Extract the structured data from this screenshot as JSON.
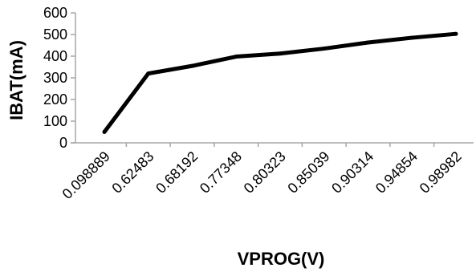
{
  "chart_data": {
    "type": "line",
    "title": "",
    "xlabel": "VPROG(V)",
    "ylabel": "IBAT(mA)",
    "categories": [
      "0.098889",
      "0.62483",
      "0.68192",
      "0.77348",
      "0.80323",
      "0.85039",
      "0.90314",
      "0.94854",
      "0.98982"
    ],
    "series": [
      {
        "values": [
          50,
          320,
          355,
          398,
          412,
          435,
          463,
          485,
          503
        ]
      }
    ],
    "ylim": [
      0,
      600
    ],
    "yticks": [
      "0",
      "100",
      "200",
      "300",
      "400",
      "500",
      "600"
    ],
    "grid": false,
    "legend": "none",
    "colors": {
      "line": "#000000",
      "axis": "#a6a6a6"
    }
  }
}
